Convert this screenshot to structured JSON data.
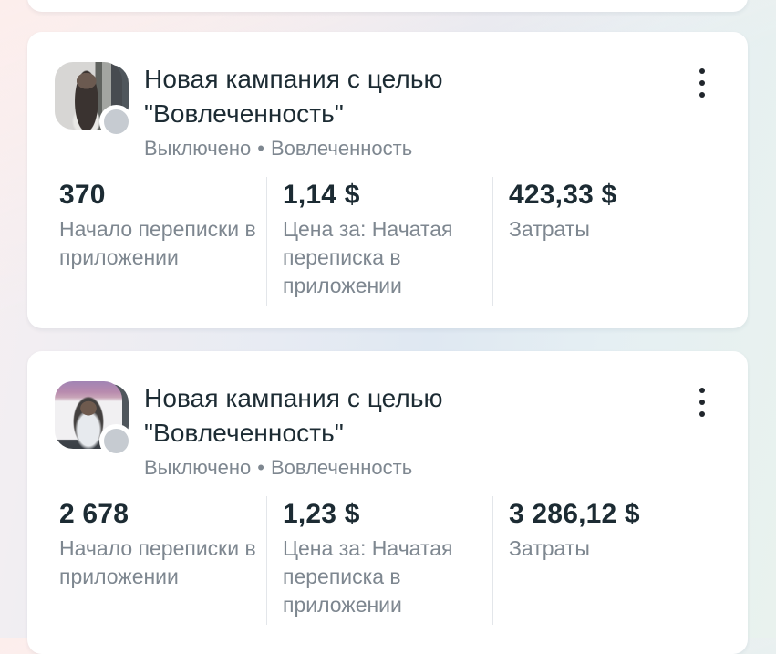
{
  "colors": {
    "card_background": "#ffffff",
    "title_text": "#1c2b33",
    "secondary_text": "#7e8790",
    "divider": "#e3e6ea",
    "status_badge_inactive": "#c6cbd1",
    "kebab_dots": "#20262c",
    "background_gradient": [
      "#fdf1ee",
      "#dfe8f2",
      "#e9f2ee"
    ]
  },
  "icons": {
    "more_options": "kebab-vertical-three-dots",
    "status_badge": "gray-circle-inactive"
  },
  "cards": [
    {
      "title": "Новая кампания с целью \"Вовлеченность\"",
      "status": "Выключено",
      "separator": "•",
      "objective": "Вовлеченность",
      "stats": [
        {
          "value": "370",
          "label": "Начало переписки в приложении"
        },
        {
          "value": "1,14 $",
          "label": "Цена за: Начатая переписка в приложении"
        },
        {
          "value": "423,33 $",
          "label": "Затраты"
        }
      ]
    },
    {
      "title": "Новая кампания с целью \"Вовлеченность\"",
      "status": "Выключено",
      "separator": "•",
      "objective": "Вовлеченность",
      "stats": [
        {
          "value": "2 678",
          "label": "Начало переписки в приложении"
        },
        {
          "value": "1,23 $",
          "label": "Цена за: Начатая переписка в приложении"
        },
        {
          "value": "3 286,12 $",
          "label": "Затраты"
        }
      ]
    }
  ]
}
